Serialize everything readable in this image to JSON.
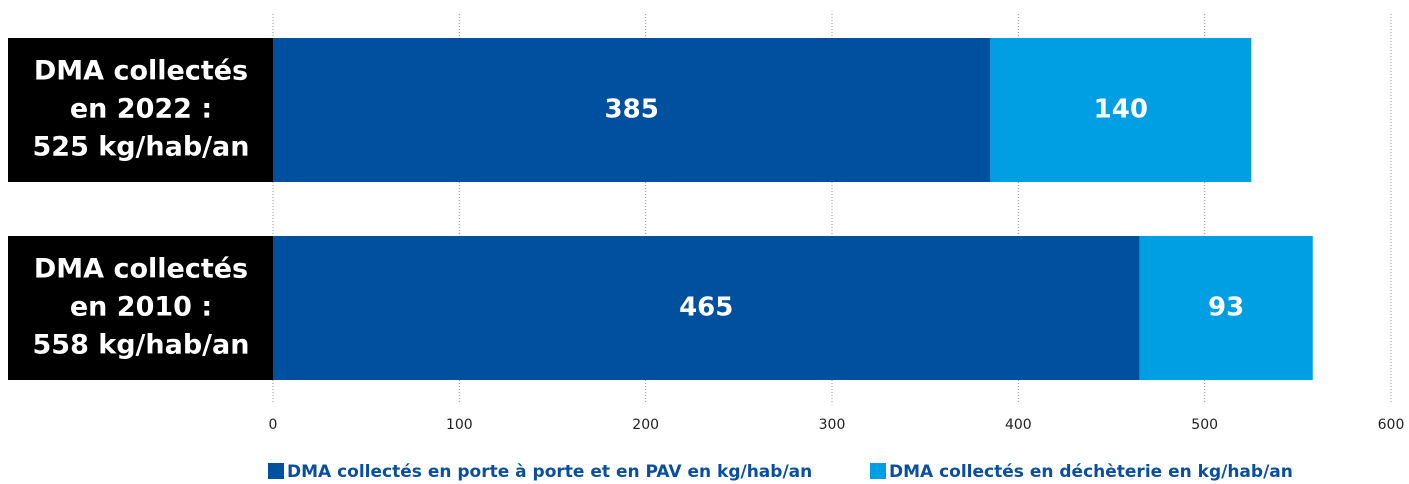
{
  "chart_data": {
    "type": "stacked_barh",
    "categories": [
      [
        "DMA collectés",
        "en 2022 :",
        "525 kg/hab/an"
      ],
      [
        "DMA collectés",
        "en 2010 :",
        "558 kg/hab/an"
      ]
    ],
    "series": [
      {
        "name": "DMA collectés en porte à porte et en PAV en kg/hab/an",
        "color": "#0050a0",
        "values": [
          385,
          465
        ]
      },
      {
        "name": "DMA collectés en déchèterie en kg/hab/an",
        "color": "#009fe3",
        "values": [
          140,
          93
        ]
      }
    ],
    "xlim": [
      0,
      600
    ],
    "xticks": [
      0,
      100,
      200,
      300,
      400,
      500,
      600
    ],
    "grid": true
  }
}
